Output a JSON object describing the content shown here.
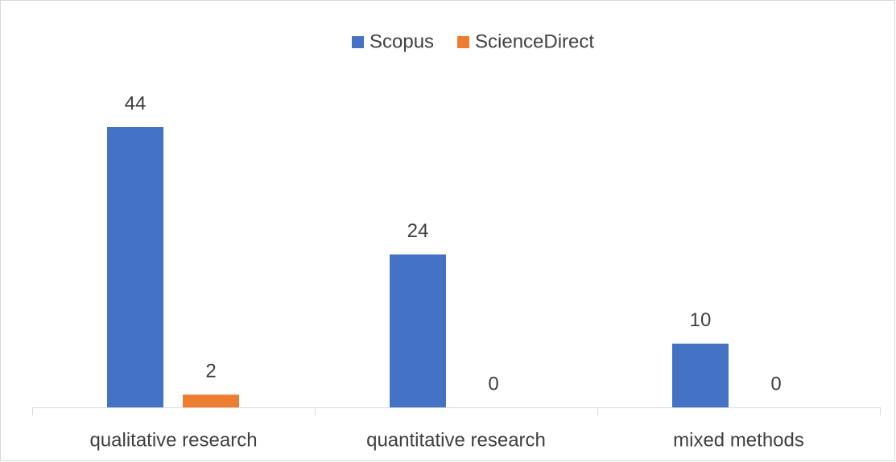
{
  "chart_data": {
    "type": "bar",
    "categories": [
      "qualitative research",
      "quantitative research",
      "mixed methods"
    ],
    "series": [
      {
        "name": "Scopus",
        "color": "#4472c4",
        "values": [
          44,
          24,
          10
        ]
      },
      {
        "name": "ScienceDirect",
        "color": "#ed7d31",
        "values": [
          2,
          0,
          0
        ]
      }
    ],
    "legend": "top"
  }
}
